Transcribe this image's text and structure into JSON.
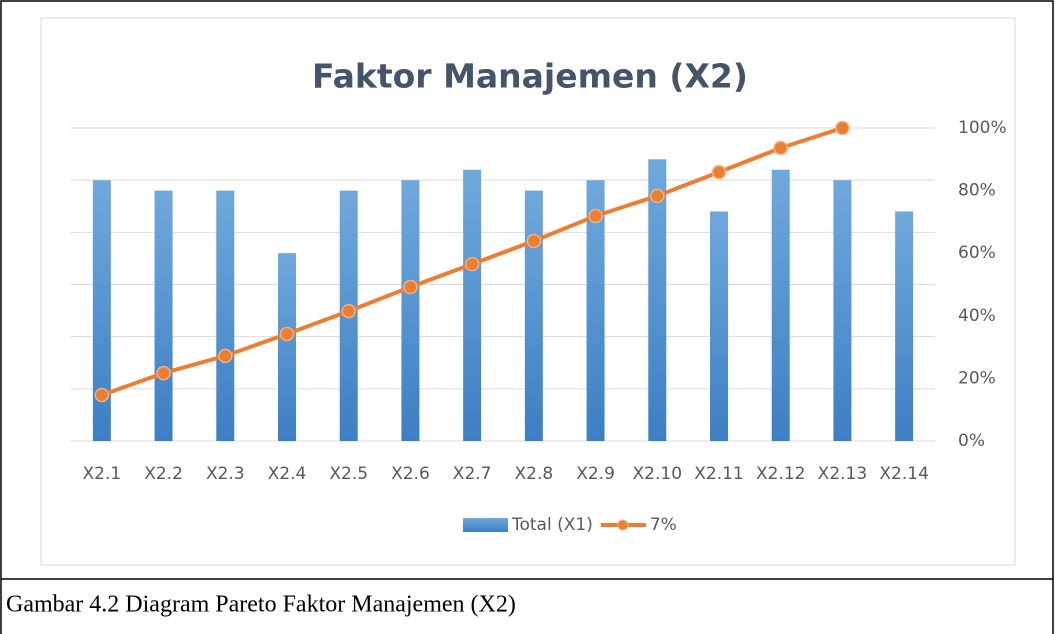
{
  "chart_data": {
    "type": "combo",
    "title": "Faktor Manajemen (X2)",
    "categories": [
      "X2.1",
      "X2.2",
      "X2.3",
      "X2.4",
      "X2.5",
      "X2.6",
      "X2.7",
      "X2.8",
      "X2.9",
      "X2.10",
      "X2.11",
      "X2.12",
      "X2.13",
      "X2.14"
    ],
    "series": [
      {
        "name": "Total (X1)",
        "type": "bar",
        "color": "#5b9bd5",
        "axis": "y",
        "values": [
          5.0,
          4.8,
          4.8,
          3.6,
          4.8,
          5.0,
          5.2,
          4.8,
          5.0,
          5.4,
          4.4,
          5.2,
          5.0,
          4.4
        ]
      },
      {
        "name": "7%",
        "type": "line",
        "color": "#ed7d31",
        "axis": "y2",
        "values": [
          14.7,
          21.7,
          27.2,
          34.2,
          41.5,
          49.2,
          56.5,
          63.9,
          71.9,
          78.3,
          85.9,
          93.6,
          100,
          null
        ]
      }
    ],
    "ylim": [
      0,
      6
    ],
    "yticks": [
      0,
      1,
      2,
      3,
      4,
      5,
      6
    ],
    "y_tick_labels": false,
    "y2lim": [
      0,
      100
    ],
    "y2ticks": [
      {
        "value": 0,
        "label": "0%"
      },
      {
        "value": 20,
        "label": "20%"
      },
      {
        "value": 40,
        "label": "40%"
      },
      {
        "value": 60,
        "label": "60%"
      },
      {
        "value": 80,
        "label": "80%"
      },
      {
        "value": 100,
        "label": "100%"
      }
    ],
    "grid": true,
    "legend": "bottom"
  },
  "caption": "Gambar 4.2 Diagram Pareto Faktor Manajemen (X2)"
}
